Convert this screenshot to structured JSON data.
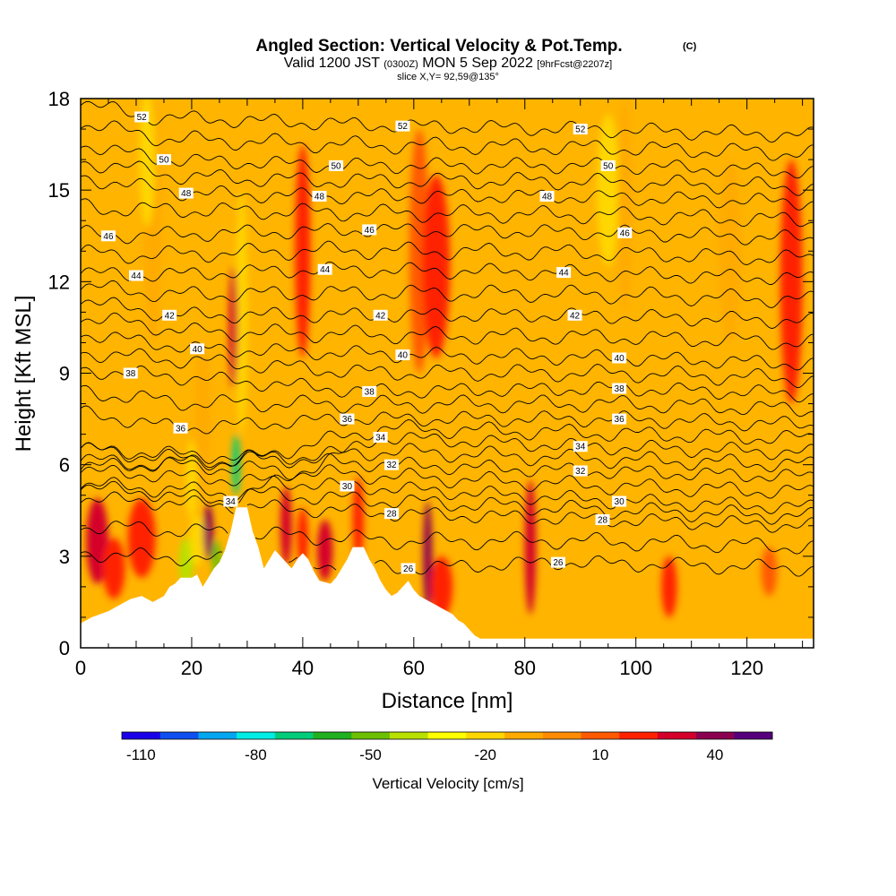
{
  "chart_data": {
    "type": "heatmap",
    "title_main": "Angled Section: Vertical Velocity & Pot.Temp.",
    "title_unit": "(C)",
    "subtitle_a": "Valid 1200 JST",
    "subtitle_b": "(0300Z)",
    "subtitle_c": "MON 5 Sep 2022",
    "subtitle_d": "[9hrFcst@2207z]",
    "slice_info": "slice X,Y= 92,59@135°",
    "xlabel": "Distance [nm]",
    "ylabel": "Height [Kft MSL]",
    "xlim": [
      0,
      132
    ],
    "ylim": [
      0,
      18
    ],
    "x_ticks": [
      "0",
      "20",
      "40",
      "60",
      "80",
      "100",
      "120"
    ],
    "y_ticks": [
      "0",
      "3",
      "6",
      "9",
      "12",
      "15",
      "18"
    ],
    "colorbar": {
      "label": "Vertical Velocity [cm/s]",
      "tick_labels": [
        "-110",
        "-80",
        "-50",
        "-20",
        "10",
        "40"
      ],
      "colors": [
        "#1a00e8",
        "#0f4ff0",
        "#00a6f0",
        "#00ece4",
        "#00cc7a",
        "#20b020",
        "#6cc000",
        "#b8e000",
        "#ffff00",
        "#ffd700",
        "#ffaa00",
        "#ff8c00",
        "#ff5a00",
        "#ff2000",
        "#d4002a",
        "#8c0050",
        "#55007a"
      ]
    },
    "background_color": "#ffb400",
    "theta_contours": [
      {
        "label": "26",
        "x": 86,
        "y": 2.8
      },
      {
        "label": "26",
        "x": 59,
        "y": 2.6
      },
      {
        "label": "28",
        "x": 56,
        "y": 4.4
      },
      {
        "label": "28",
        "x": 94,
        "y": 4.2
      },
      {
        "label": "30",
        "x": 48,
        "y": 5.3
      },
      {
        "label": "30",
        "x": 97,
        "y": 4.8
      },
      {
        "label": "32",
        "x": 56,
        "y": 6.0
      },
      {
        "label": "32",
        "x": 90,
        "y": 5.8
      },
      {
        "label": "34",
        "x": 27,
        "y": 4.8
      },
      {
        "label": "34",
        "x": 54,
        "y": 6.9
      },
      {
        "label": "34",
        "x": 90,
        "y": 6.6
      },
      {
        "label": "36",
        "x": 18,
        "y": 7.2
      },
      {
        "label": "36",
        "x": 48,
        "y": 7.5
      },
      {
        "label": "36",
        "x": 97,
        "y": 7.5
      },
      {
        "label": "38",
        "x": 9,
        "y": 9.0
      },
      {
        "label": "38",
        "x": 52,
        "y": 8.4
      },
      {
        "label": "38",
        "x": 97,
        "y": 8.5
      },
      {
        "label": "40",
        "x": 21,
        "y": 9.8
      },
      {
        "label": "40",
        "x": 58,
        "y": 9.6
      },
      {
        "label": "40",
        "x": 97,
        "y": 9.5
      },
      {
        "label": "42",
        "x": 16,
        "y": 10.9
      },
      {
        "label": "42",
        "x": 54,
        "y": 10.9
      },
      {
        "label": "42",
        "x": 89,
        "y": 10.9
      },
      {
        "label": "44",
        "x": 10,
        "y": 12.2
      },
      {
        "label": "44",
        "x": 44,
        "y": 12.4
      },
      {
        "label": "44",
        "x": 87,
        "y": 12.3
      },
      {
        "label": "46",
        "x": 5,
        "y": 13.5
      },
      {
        "label": "46",
        "x": 52,
        "y": 13.7
      },
      {
        "label": "46",
        "x": 98,
        "y": 13.6
      },
      {
        "label": "48",
        "x": 19,
        "y": 14.9
      },
      {
        "label": "48",
        "x": 43,
        "y": 14.8
      },
      {
        "label": "48",
        "x": 84,
        "y": 14.8
      },
      {
        "label": "50",
        "x": 15,
        "y": 16.0
      },
      {
        "label": "50",
        "x": 46,
        "y": 15.8
      },
      {
        "label": "50",
        "x": 95,
        "y": 15.8
      },
      {
        "label": "52",
        "x": 11,
        "y": 17.4
      },
      {
        "label": "52",
        "x": 58,
        "y": 17.1
      },
      {
        "label": "52",
        "x": 90,
        "y": 17.0
      }
    ],
    "terrain": [
      [
        0,
        0.8
      ],
      [
        2,
        1.0
      ],
      [
        5,
        1.2
      ],
      [
        7,
        1.4
      ],
      [
        9,
        1.6
      ],
      [
        11,
        1.7
      ],
      [
        13,
        1.5
      ],
      [
        15,
        1.7
      ],
      [
        16,
        2.0
      ],
      [
        17,
        2.1
      ],
      [
        18,
        2.3
      ],
      [
        20,
        2.3
      ],
      [
        21,
        2.4
      ],
      [
        22,
        2.0
      ],
      [
        23,
        2.3
      ],
      [
        24,
        2.6
      ],
      [
        25,
        2.8
      ],
      [
        26,
        3.2
      ],
      [
        27,
        3.8
      ],
      [
        28,
        4.6
      ],
      [
        30,
        4.6
      ],
      [
        31,
        3.8
      ],
      [
        32,
        3.3
      ],
      [
        33,
        2.6
      ],
      [
        34,
        2.9
      ],
      [
        35,
        3.2
      ],
      [
        36,
        3.0
      ],
      [
        37,
        2.8
      ],
      [
        38,
        2.6
      ],
      [
        39,
        2.9
      ],
      [
        40,
        3.1
      ],
      [
        41,
        2.9
      ],
      [
        42,
        2.5
      ],
      [
        43,
        2.2
      ],
      [
        45,
        2.1
      ],
      [
        46,
        2.3
      ],
      [
        47,
        2.6
      ],
      [
        48,
        2.9
      ],
      [
        49,
        3.3
      ],
      [
        51,
        3.3
      ],
      [
        52,
        2.9
      ],
      [
        53,
        2.6
      ],
      [
        54,
        2.2
      ],
      [
        55,
        1.9
      ],
      [
        56,
        1.7
      ],
      [
        57,
        1.8
      ],
      [
        58,
        2.0
      ],
      [
        59,
        2.2
      ],
      [
        60,
        1.9
      ],
      [
        61,
        1.7
      ],
      [
        62,
        1.6
      ],
      [
        63,
        1.5
      ],
      [
        64,
        1.4
      ],
      [
        65,
        1.3
      ],
      [
        66,
        1.2
      ],
      [
        67,
        1.1
      ],
      [
        68,
        0.9
      ],
      [
        69,
        0.8
      ],
      [
        70,
        0.6
      ],
      [
        71,
        0.4
      ],
      [
        72,
        0.3
      ],
      [
        132,
        0.3
      ]
    ],
    "velocity_cells": [
      {
        "x": 3,
        "y": 3.5,
        "rx": 2.0,
        "ry": 1.4,
        "v": 30
      },
      {
        "x": 6,
        "y": 2.6,
        "rx": 2.0,
        "ry": 1.0,
        "v": 22
      },
      {
        "x": 11,
        "y": 3.6,
        "rx": 2.5,
        "ry": 1.3,
        "v": 15
      },
      {
        "x": 19,
        "y": 2.8,
        "rx": 1.3,
        "ry": 0.8,
        "v": -45
      },
      {
        "x": 21,
        "y": 3.5,
        "rx": 1.4,
        "ry": 0.8,
        "v": -25
      },
      {
        "x": 20,
        "y": 5.5,
        "rx": 1.0,
        "ry": 1.3,
        "v": -20
      },
      {
        "x": 23,
        "y": 3.8,
        "rx": 0.9,
        "ry": 0.9,
        "v": 35
      },
      {
        "x": 24.5,
        "y": 2.9,
        "rx": 0.8,
        "ry": 0.6,
        "v": -50
      },
      {
        "x": 28,
        "y": 6.0,
        "rx": 0.7,
        "ry": 1.0,
        "v": -70
      },
      {
        "x": 22,
        "y": 7.5,
        "rx": 1.4,
        "ry": 2.5,
        "v": -15
      },
      {
        "x": 29,
        "y": 11,
        "rx": 1.0,
        "ry": 4.0,
        "v": -18
      },
      {
        "x": 27.5,
        "y": 10.5,
        "rx": 0.8,
        "ry": 2.0,
        "v": 25
      },
      {
        "x": 37,
        "y": 4.0,
        "rx": 1.0,
        "ry": 1.3,
        "v": 32
      },
      {
        "x": 40,
        "y": 3.6,
        "rx": 1.0,
        "ry": 1.0,
        "v": 20
      },
      {
        "x": 44,
        "y": 3.2,
        "rx": 1.4,
        "ry": 1.0,
        "v": 25
      },
      {
        "x": 50,
        "y": 4.2,
        "rx": 1.0,
        "ry": 1.4,
        "v": 22
      },
      {
        "x": 62.5,
        "y": 3.0,
        "rx": 0.8,
        "ry": 1.8,
        "v": 35
      },
      {
        "x": 81,
        "y": 3.5,
        "rx": 0.7,
        "ry": 1.2,
        "v": 45
      },
      {
        "x": 81,
        "y": 3.3,
        "rx": 1.0,
        "ry": 2.2,
        "v": 30
      },
      {
        "x": 65,
        "y": 2.0,
        "rx": 2.0,
        "ry": 1.0,
        "v": 15
      },
      {
        "x": 106,
        "y": 2.0,
        "rx": 1.4,
        "ry": 1.0,
        "v": 15
      },
      {
        "x": 124,
        "y": 2.5,
        "rx": 1.4,
        "ry": 0.8,
        "v": 12
      },
      {
        "x": 13,
        "y": 14,
        "rx": 1.6,
        "ry": 4.0,
        "v": -15
      },
      {
        "x": 12,
        "y": 16,
        "rx": 1.4,
        "ry": 2.2,
        "v": -18
      },
      {
        "x": 95,
        "y": 15,
        "rx": 2.0,
        "ry": 2.5,
        "v": -18
      },
      {
        "x": 98,
        "y": 14.5,
        "rx": 1.3,
        "ry": 3.5,
        "v": -12
      },
      {
        "x": 40,
        "y": 13,
        "rx": 1.4,
        "ry": 3.5,
        "v": 15
      },
      {
        "x": 61,
        "y": 13,
        "rx": 1.8,
        "ry": 4.0,
        "v": 14
      },
      {
        "x": 64,
        "y": 12.5,
        "rx": 2.5,
        "ry": 3.0,
        "v": 15
      },
      {
        "x": 128,
        "y": 12,
        "rx": 2.0,
        "ry": 4.0,
        "v": 15
      },
      {
        "x": 117,
        "y": 13,
        "rx": 2.0,
        "ry": 3.0,
        "v": -10
      }
    ]
  }
}
